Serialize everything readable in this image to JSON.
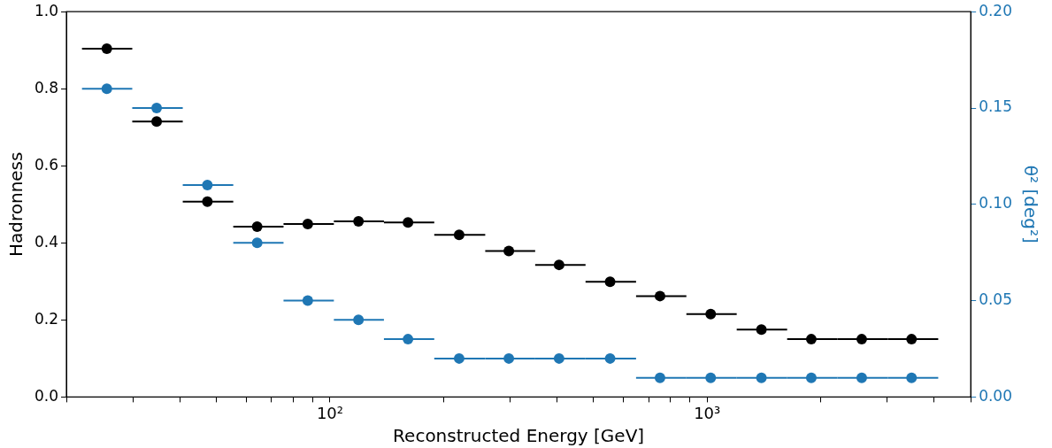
{
  "chart_data": {
    "type": "scatter",
    "xlabel": "Reconstructed Energy [GeV]",
    "ylabel": "Hadronness",
    "y2label": "θ² [deg²]",
    "log": "x",
    "marker": "circle",
    "grid": false,
    "legend": false,
    "x": [
      25.6,
      34.7,
      47.3,
      64.1,
      87.3,
      119,
      161,
      220,
      298,
      405,
      553,
      750,
      1022,
      1393,
      1889,
      2570,
      3484
    ],
    "xlim": [
      20,
      5000
    ],
    "xticks": [
      {
        "value": 20,
        "label": null
      },
      {
        "value": 30,
        "label": null
      },
      {
        "value": 40,
        "label": null
      },
      {
        "value": 50,
        "label": null
      },
      {
        "value": 60,
        "label": null
      },
      {
        "value": 70,
        "label": null
      },
      {
        "value": 80,
        "label": null
      },
      {
        "value": 90,
        "label": null
      },
      {
        "value": 100,
        "label": "10²"
      },
      {
        "value": 200,
        "label": null
      },
      {
        "value": 300,
        "label": null
      },
      {
        "value": 400,
        "label": null
      },
      {
        "value": 500,
        "label": null
      },
      {
        "value": 600,
        "label": null
      },
      {
        "value": 700,
        "label": null
      },
      {
        "value": 800,
        "label": null
      },
      {
        "value": 900,
        "label": null
      },
      {
        "value": 1000,
        "label": "10³"
      },
      {
        "value": 2000,
        "label": null
      },
      {
        "value": 3000,
        "label": null
      },
      {
        "value": 4000,
        "label": null
      },
      {
        "value": 5000,
        "label": null
      }
    ],
    "ylim": [
      0,
      1
    ],
    "yticks": [
      {
        "value": 0,
        "label": "0.0"
      },
      0.2,
      0.4,
      0.6,
      0.8,
      {
        "value": 1,
        "label": "1.0"
      }
    ],
    "y2lim": [
      0,
      0.2
    ],
    "y2ticks": [
      {
        "value": 0,
        "label": "0.00"
      },
      0.05,
      {
        "value": 0.1,
        "label": "0.10"
      },
      0.15,
      {
        "value": 0.2,
        "label": "0.20"
      }
    ],
    "series": [
      {
        "color": "#000000",
        "values": [
          0.904,
          0.715,
          0.507,
          0.442,
          0.449,
          0.456,
          0.453,
          0.421,
          0.379,
          0.343,
          0.299,
          0.262,
          0.215,
          0.175,
          0.15,
          0.15,
          0.15
        ],
        "xerrors": [
          [
            22.0,
            29.9
          ],
          [
            29.9,
            40.7
          ],
          [
            40.7,
            55.4
          ],
          [
            55.4,
            75.3
          ],
          [
            75.3,
            102.4
          ],
          [
            102.4,
            139
          ],
          [
            139,
            189
          ],
          [
            189,
            258
          ],
          [
            258,
            350
          ],
          [
            350,
            476
          ],
          [
            476,
            648
          ],
          [
            648,
            881
          ],
          [
            881,
            1198
          ],
          [
            1198,
            1630
          ],
          [
            1630,
            2216
          ],
          [
            2216,
            3014
          ],
          [
            3014,
            4100
          ]
        ]
      },
      {
        "color": "#1f77b4",
        "axis": "y2",
        "values": [
          0.16,
          0.15,
          0.11,
          0.08,
          0.05,
          0.04,
          0.03,
          0.02,
          0.02,
          0.02,
          0.02,
          0.01,
          0.01,
          0.01,
          0.01,
          0.01,
          0.01
        ],
        "xerrors": [
          [
            22.0,
            29.9
          ],
          [
            29.9,
            40.7
          ],
          [
            40.7,
            55.4
          ],
          [
            55.4,
            75.3
          ],
          [
            75.3,
            102.4
          ],
          [
            102.4,
            139
          ],
          [
            139,
            189
          ],
          [
            189,
            258
          ],
          [
            258,
            350
          ],
          [
            350,
            476
          ],
          [
            476,
            648
          ],
          [
            648,
            881
          ],
          [
            881,
            1198
          ],
          [
            1198,
            1630
          ],
          [
            1630,
            2216
          ],
          [
            2216,
            3014
          ],
          [
            3014,
            4100
          ]
        ]
      }
    ]
  }
}
